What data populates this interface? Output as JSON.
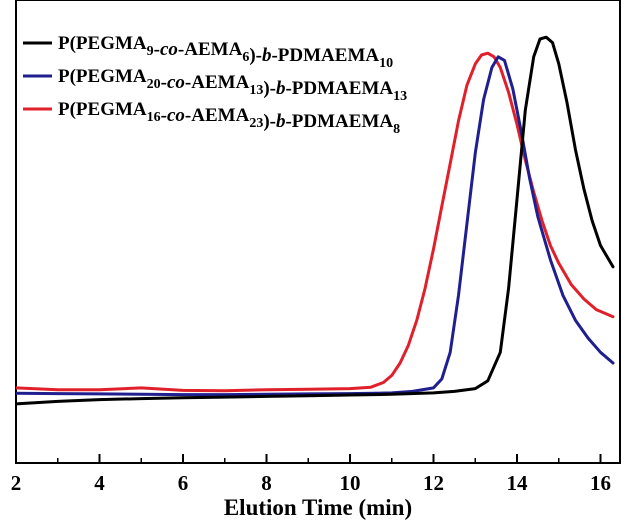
{
  "chart_data": {
    "type": "line",
    "title": "",
    "xlabel": "Elution Time (min)",
    "ylabel": "",
    "xlim": [
      2,
      16.3
    ],
    "ylim": [
      -0.1,
      1.0
    ],
    "xticks": [
      "2",
      "4",
      "6",
      "8",
      "10",
      "12",
      "14",
      "16"
    ],
    "grid": false,
    "legend_position": "top-left",
    "series": [
      {
        "name": "P(PEGMA9-co-AEMA6)-b-PDMAEMA10",
        "legend_parts": [
          {
            "t": "P(PEGMA"
          },
          {
            "t": "9",
            "sub": true
          },
          {
            "t": "-"
          },
          {
            "t": "co",
            "italic": true
          },
          {
            "t": "-AEMA"
          },
          {
            "t": "6",
            "sub": true
          },
          {
            "t": ")-"
          },
          {
            "t": "b",
            "italic": true
          },
          {
            "t": "-PDMAEMA"
          },
          {
            "t": "10",
            "sub": true
          }
        ],
        "color": "#000000",
        "x": [
          2.0,
          3.0,
          4.0,
          5.0,
          6.0,
          7.0,
          8.0,
          9.0,
          10.0,
          11.0,
          12.0,
          12.5,
          13.0,
          13.3,
          13.6,
          13.8,
          14.0,
          14.2,
          14.4,
          14.55,
          14.7,
          14.85,
          15.0,
          15.2,
          15.4,
          15.6,
          15.8,
          16.0,
          16.3
        ],
        "y": [
          -0.025,
          -0.018,
          -0.013,
          -0.01,
          -0.008,
          -0.006,
          -0.004,
          -0.002,
          0.0,
          0.002,
          0.006,
          0.01,
          0.018,
          0.04,
          0.12,
          0.3,
          0.55,
          0.8,
          0.95,
          1.0,
          1.005,
          0.99,
          0.93,
          0.82,
          0.69,
          0.58,
          0.49,
          0.42,
          0.36
        ]
      },
      {
        "name": "P(PEGMA20-co-AEMA13)-b-PDMAEMA13",
        "legend_parts": [
          {
            "t": "P(PEGMA"
          },
          {
            "t": "20",
            "sub": true
          },
          {
            "t": "-"
          },
          {
            "t": "co",
            "italic": true
          },
          {
            "t": "-AEMA"
          },
          {
            "t": "13",
            "sub": true
          },
          {
            "t": ")-"
          },
          {
            "t": "b",
            "italic": true
          },
          {
            "t": "-PDMAEMA"
          },
          {
            "t": "13",
            "sub": true
          }
        ],
        "color": "#1f1f8f",
        "x": [
          2.0,
          3.0,
          4.0,
          5.0,
          6.0,
          7.0,
          8.0,
          9.0,
          10.0,
          11.0,
          11.5,
          12.0,
          12.2,
          12.4,
          12.6,
          12.8,
          13.0,
          13.2,
          13.4,
          13.55,
          13.7,
          13.9,
          14.1,
          14.3,
          14.5,
          14.8,
          15.1,
          15.4,
          15.7,
          16.0,
          16.3
        ],
        "y": [
          0.005,
          0.004,
          0.003,
          0.002,
          0.001,
          0.001,
          0.002,
          0.003,
          0.004,
          0.006,
          0.01,
          0.02,
          0.045,
          0.12,
          0.28,
          0.48,
          0.68,
          0.83,
          0.92,
          0.95,
          0.94,
          0.86,
          0.74,
          0.61,
          0.5,
          0.38,
          0.28,
          0.21,
          0.16,
          0.12,
          0.09
        ]
      },
      {
        "name": "P(PEGMA16-co-AEMA23)-b-PDMAEMA8",
        "legend_parts": [
          {
            "t": "P(PEGMA"
          },
          {
            "t": "16",
            "sub": true
          },
          {
            "t": "-"
          },
          {
            "t": "co",
            "italic": true
          },
          {
            "t": "-AEMA"
          },
          {
            "t": "23",
            "sub": true
          },
          {
            "t": ")-"
          },
          {
            "t": "b",
            "italic": true
          },
          {
            "t": "-PDMAEMA"
          },
          {
            "t": "8",
            "sub": true
          }
        ],
        "color": "#e0202a",
        "x": [
          2.0,
          3.0,
          4.0,
          5.0,
          6.0,
          7.0,
          8.0,
          9.0,
          10.0,
          10.5,
          10.8,
          11.0,
          11.2,
          11.4,
          11.6,
          11.8,
          12.0,
          12.2,
          12.4,
          12.6,
          12.8,
          13.0,
          13.15,
          13.3,
          13.45,
          13.6,
          13.8,
          14.0,
          14.2,
          14.4,
          14.6,
          14.8,
          15.0,
          15.3,
          15.6,
          15.9,
          16.3
        ],
        "y": [
          0.02,
          0.015,
          0.015,
          0.02,
          0.013,
          0.012,
          0.015,
          0.016,
          0.018,
          0.022,
          0.035,
          0.055,
          0.09,
          0.14,
          0.21,
          0.3,
          0.41,
          0.53,
          0.65,
          0.77,
          0.87,
          0.93,
          0.955,
          0.96,
          0.95,
          0.92,
          0.85,
          0.76,
          0.66,
          0.57,
          0.49,
          0.42,
          0.37,
          0.31,
          0.27,
          0.24,
          0.22
        ]
      }
    ]
  }
}
